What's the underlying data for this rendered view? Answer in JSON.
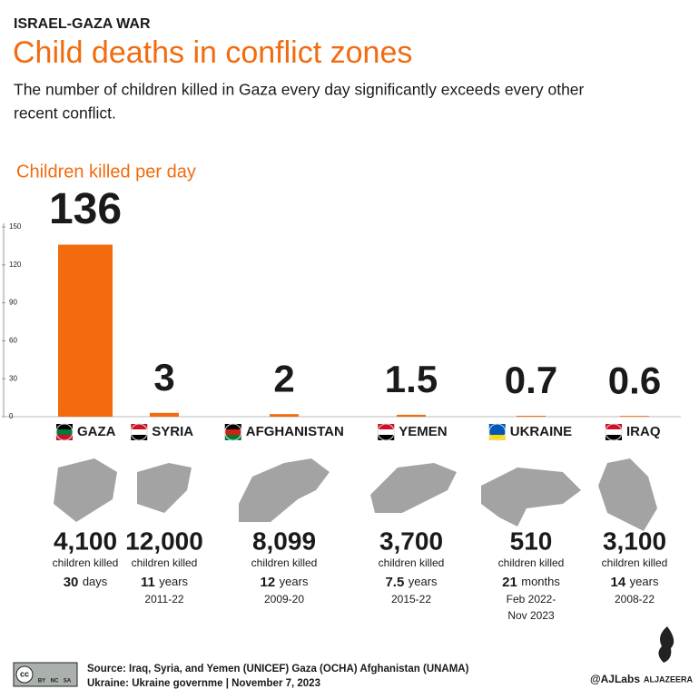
{
  "chart_data": {
    "type": "bar",
    "kicker": "ISRAEL-GAZA WAR",
    "title": "Child deaths in conflict zones",
    "subtitle": [
      "The number of children killed in Gaza every day significantly exceeds every other",
      "recent conflict."
    ],
    "axis_title": "Children killed per day",
    "categories": [
      "GAZA",
      "SYRIA",
      "AFGHANISTAN",
      "YEMEN",
      "UKRAINE",
      "IRAQ"
    ],
    "values": [
      136,
      3,
      2,
      1.5,
      0.7,
      0.6
    ],
    "color": "#f26b0f",
    "ylim": [
      0,
      150
    ],
    "yticks": [
      0,
      30,
      60,
      90,
      120,
      150
    ],
    "grid": false,
    "details": [
      {
        "killed": "4,100",
        "killed_label": "children killed",
        "duration": "30",
        "unit": "days",
        "period": []
      },
      {
        "killed": "12,000",
        "killed_label": "children killed",
        "duration": "11",
        "unit": "years",
        "period": [
          "2011-22"
        ]
      },
      {
        "killed": "8,099",
        "killed_label": "children killed",
        "duration": "12",
        "unit": "years",
        "period": [
          "2009-20"
        ]
      },
      {
        "killed": "3,700",
        "killed_label": "children killed",
        "duration": "7.5",
        "unit": "years",
        "period": [
          "2015-22"
        ]
      },
      {
        "killed": "510",
        "killed_label": "children killed",
        "duration": "21",
        "unit": "months",
        "period": [
          "Feb 2022-",
          "Nov 2023"
        ]
      },
      {
        "killed": "3,100",
        "killed_label": "children killed",
        "duration": "14",
        "unit": "years",
        "period": [
          "2008-22"
        ]
      }
    ],
    "footer": {
      "license": [
        "cc",
        "BY",
        "NC",
        "SA"
      ],
      "source": [
        "Source: Iraq, Syria, and Yemen (UNICEF) Gaza (OCHA) Afghanistan (UNAMA)",
        "Ukraine: Ukraine governme"
      ],
      "date": "November 7, 2023",
      "handle": "@AJLabs",
      "brand": "ALJAZEERA"
    }
  }
}
